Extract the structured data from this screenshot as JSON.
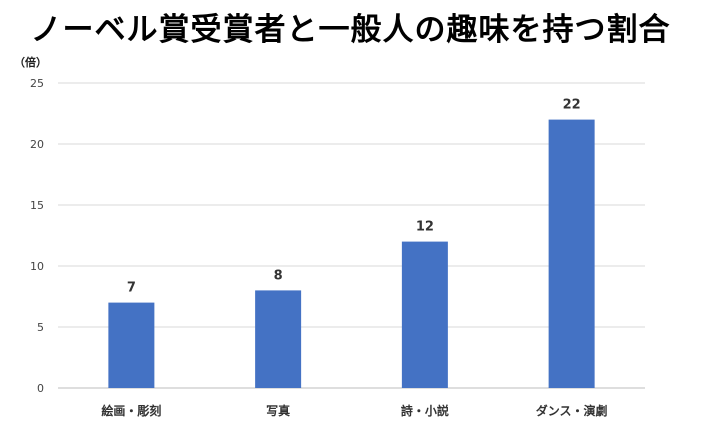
{
  "chart_data": {
    "type": "bar",
    "title": "ノーベル賞受賞者と一般人の趣味を持つ割合",
    "ylabel": "（倍）",
    "xlabel": "",
    "categories": [
      "絵画・彫刻",
      "写真",
      "詩・小説",
      "ダンス・演劇"
    ],
    "values": [
      7,
      8,
      12,
      22
    ],
    "ylim": [
      0,
      25
    ],
    "yticks": [
      0,
      5,
      10,
      15,
      20,
      25
    ],
    "grid": true,
    "legend": "none",
    "bar_color": "#4472c4"
  }
}
